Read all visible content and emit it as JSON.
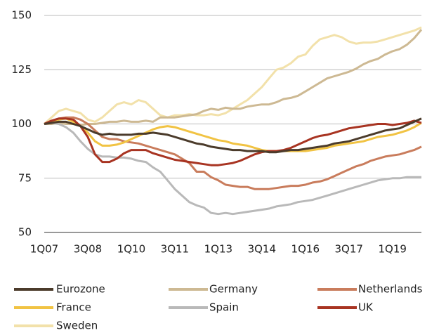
{
  "chart_data": {
    "type": "line",
    "categories": [
      "1Q07",
      null,
      null,
      null,
      null,
      null,
      "3Q08",
      null,
      null,
      null,
      null,
      null,
      "1Q10",
      null,
      null,
      null,
      null,
      null,
      "3Q11",
      null,
      null,
      null,
      null,
      null,
      "1Q13",
      null,
      null,
      null,
      null,
      null,
      "3Q14",
      null,
      null,
      null,
      null,
      null,
      "1Q16",
      null,
      null,
      null,
      null,
      null,
      "3Q17",
      null,
      null,
      null,
      null,
      null,
      "1Q19",
      null,
      null,
      null,
      null
    ],
    "ylim": [
      50,
      150
    ],
    "yticks": [
      50,
      75,
      100,
      125,
      150
    ],
    "grid": true,
    "series": [
      {
        "name": "Eurozone",
        "color": "#4b3b2b",
        "values": [
          100,
          100.5,
          101,
          101,
          100,
          99,
          97.5,
          96,
          95,
          95.5,
          95,
          95,
          95,
          95.5,
          95.5,
          96,
          95.5,
          95,
          94,
          93,
          92,
          91,
          90.5,
          89.5,
          89,
          88.5,
          88,
          88,
          87.5,
          87.5,
          87.5,
          87,
          87,
          87.5,
          88,
          88,
          88.5,
          89,
          89.5,
          90,
          91,
          91.5,
          92,
          93,
          94,
          95,
          96,
          97,
          97.5,
          98,
          99.5,
          101,
          102.5
        ]
      },
      {
        "name": "Germany",
        "color": "#cdb993",
        "values": [
          100,
          100,
          100.5,
          100,
          100,
          99.5,
          100,
          100,
          100.5,
          101,
          101,
          101.5,
          101,
          101,
          101.5,
          101,
          103,
          103,
          103,
          103.5,
          104,
          104.5,
          106,
          107,
          106.5,
          107.5,
          107,
          107,
          108,
          108.5,
          109,
          109,
          110,
          111.5,
          112,
          113,
          115,
          117,
          119,
          121,
          122,
          123,
          124,
          125.5,
          127.5,
          129,
          130,
          132,
          133.5,
          134.5,
          136.5,
          139.5,
          143.5
        ]
      },
      {
        "name": "Netherlands",
        "color": "#c97c5c",
        "values": [
          100,
          101.5,
          102.5,
          103,
          103,
          102,
          100,
          97,
          94,
          93,
          93,
          92,
          91.5,
          91,
          90,
          89,
          88,
          87,
          86,
          84,
          82,
          78,
          78,
          75.5,
          74,
          72,
          71.5,
          71,
          71,
          70,
          70,
          70,
          70.5,
          71,
          71.5,
          71.5,
          72,
          73,
          73.5,
          74.5,
          76,
          77.5,
          79,
          80.5,
          81.5,
          83,
          84,
          85,
          85.5,
          86,
          87,
          88,
          89.5
        ]
      },
      {
        "name": "France",
        "color": "#f1c343",
        "values": [
          100,
          101,
          102,
          102.5,
          101,
          99,
          96,
          92,
          90,
          90,
          90.5,
          91.5,
          93,
          94.5,
          96,
          97.5,
          98.5,
          99,
          98.5,
          97.5,
          96.5,
          95.5,
          94.5,
          93.5,
          92.5,
          92,
          91,
          90.5,
          90,
          89,
          88,
          87.5,
          87.5,
          87.5,
          87.5,
          87.5,
          87.5,
          88,
          88.5,
          89,
          90,
          90.5,
          91,
          91.5,
          92,
          93,
          94,
          94.5,
          95,
          96,
          97,
          98.5,
          100.5
        ]
      },
      {
        "name": "Spain",
        "color": "#b9b9b9",
        "values": [
          100,
          100.5,
          100,
          98.5,
          96,
          92,
          88.5,
          86,
          85,
          85,
          84.5,
          84.5,
          84,
          83,
          82.5,
          80,
          78,
          74,
          70,
          67,
          64,
          62.5,
          61.5,
          59,
          58.5,
          59,
          58.5,
          59,
          59.5,
          60,
          60.5,
          61,
          62,
          62.5,
          63,
          64,
          64.5,
          65,
          66,
          67,
          68,
          69,
          70,
          71,
          72,
          73,
          74,
          74.5,
          75,
          75,
          75.5,
          75.5,
          75.5
        ]
      },
      {
        "name": "UK",
        "color": "#a83422",
        "values": [
          100,
          101.5,
          102.5,
          102.5,
          102,
          99,
          94,
          86,
          82.5,
          82.5,
          84,
          86.5,
          88,
          88,
          88,
          86.5,
          85.5,
          84.5,
          83.5,
          83,
          82.5,
          82,
          81.5,
          81,
          81,
          81.5,
          82,
          83,
          84.5,
          86,
          87,
          87.5,
          87.5,
          88,
          89,
          90.5,
          92,
          93.5,
          94.5,
          95,
          96,
          97,
          98,
          98.5,
          99,
          99.5,
          100,
          100,
          99.5,
          100,
          100.5,
          101.5,
          100.5
        ]
      },
      {
        "name": "Sweden",
        "color": "#f2e1aa",
        "values": [
          100,
          103,
          106,
          107,
          106,
          105,
          102,
          101,
          103,
          106,
          109,
          110,
          109,
          111,
          110,
          107,
          104,
          103,
          104,
          104,
          104.5,
          104,
          104,
          104.5,
          104,
          105,
          107,
          109,
          111,
          114,
          117,
          121,
          125,
          126,
          128,
          131,
          132,
          136,
          139,
          140,
          141,
          140,
          138,
          137,
          137.5,
          137.5,
          138,
          139,
          140,
          141,
          142,
          143,
          144.5
        ]
      }
    ]
  }
}
